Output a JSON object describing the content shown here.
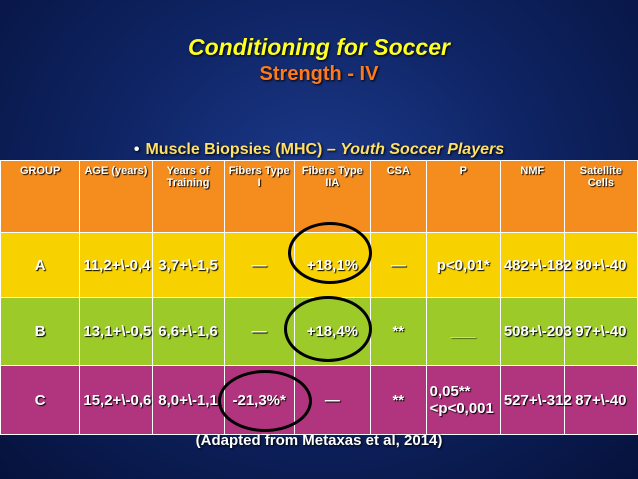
{
  "slide": {
    "title": "Conditioning for Soccer",
    "subtitle": "Strength - IV",
    "bullet": {
      "main": "Muscle Biopsies (MHC)",
      "separator": "–",
      "sub": "Youth Soccer Players"
    },
    "footer": "(Adapted from Metaxas et al, 2014)"
  },
  "table": {
    "headers": [
      "GROUP",
      "AGE (years)",
      "Years of Training",
      "Fibers Type I",
      "Fibers Type IIA",
      "CSA",
      "P",
      "NMF",
      "Satellite Cells"
    ],
    "rows": [
      [
        "A",
        "11,2+\\-0,4",
        "3,7+\\-1,5",
        "—",
        "+18,1%",
        "—",
        "p<0,01*",
        "482+\\-182",
        "80+\\-40"
      ],
      [
        "B",
        "13,1+\\-0,5",
        "6,6+\\-1,6",
        "—",
        "+18,4%",
        "**",
        "___",
        "508+\\-203",
        "97+\\-40"
      ],
      [
        "C",
        "15,2+\\-0,6",
        "8,0+\\-1,1",
        "-21,3%*",
        "—",
        "**",
        "0,05**<p<0,001",
        "527+\\-312",
        "87+\\-40"
      ]
    ]
  },
  "colors": {
    "background": "#0f2566",
    "title": "#ffff22",
    "subtitle": "#ff7a1a",
    "header_row": "#f58d1e",
    "row_a": "#f7d100",
    "row_b": "#9ccb29",
    "row_c": "#b0357e"
  }
}
